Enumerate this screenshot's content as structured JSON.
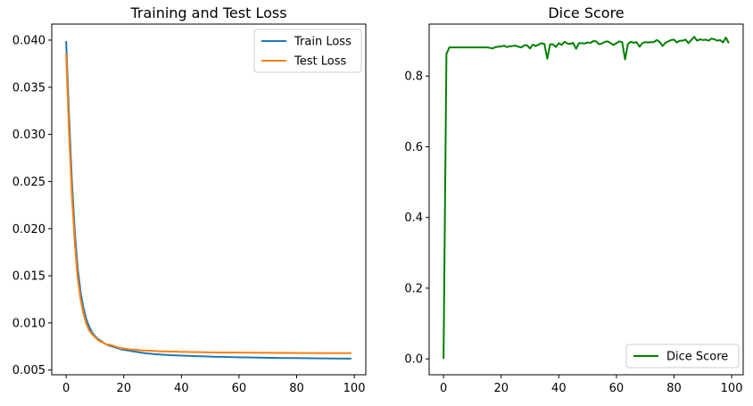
{
  "chart_data": [
    {
      "type": "line",
      "title": "Training and Test Loss",
      "xlabel": "",
      "ylabel": "",
      "xlim": [
        -5,
        104
      ],
      "ylim": [
        0.0045,
        0.0417
      ],
      "xticks": [
        0,
        20,
        40,
        60,
        80,
        100
      ],
      "yticks": [
        0.005,
        0.01,
        0.015,
        0.02,
        0.025,
        0.03,
        0.035,
        0.04
      ],
      "ytick_labels": [
        "0.005",
        "0.010",
        "0.015",
        "0.020",
        "0.025",
        "0.030",
        "0.035",
        "0.040"
      ],
      "legend_position": "top-right",
      "x": [
        0,
        1,
        2,
        3,
        4,
        5,
        6,
        7,
        8,
        9,
        10,
        11,
        12,
        13,
        14,
        15,
        16,
        17,
        18,
        19,
        20,
        21,
        22,
        23,
        24,
        25,
        26,
        27,
        28,
        29,
        30,
        31,
        32,
        33,
        34,
        35,
        36,
        37,
        38,
        39,
        40,
        41,
        42,
        43,
        44,
        45,
        46,
        47,
        48,
        49,
        50,
        51,
        52,
        53,
        54,
        55,
        56,
        57,
        58,
        59,
        60,
        61,
        62,
        63,
        64,
        65,
        66,
        67,
        68,
        69,
        70,
        71,
        72,
        73,
        74,
        75,
        76,
        77,
        78,
        79,
        80,
        81,
        82,
        83,
        84,
        85,
        86,
        87,
        88,
        89,
        90,
        91,
        92,
        93,
        94,
        95,
        96,
        97,
        98,
        99
      ],
      "series": [
        {
          "name": "Train Loss",
          "color": "#1f77b4",
          "values": [
            0.0399,
            0.0319,
            0.025,
            0.0197,
            0.0158,
            0.0133,
            0.0116,
            0.0104,
            0.0096,
            0.009,
            0.0086,
            0.0083,
            0.0081,
            0.0079,
            0.0077,
            0.0076,
            0.0075,
            0.0074,
            0.0073,
            0.0072,
            0.00715,
            0.0071,
            0.00705,
            0.007,
            0.00695,
            0.0069,
            0.00685,
            0.0068,
            0.00677,
            0.00674,
            0.00671,
            0.00668,
            0.00666,
            0.00664,
            0.00662,
            0.0066,
            0.00658,
            0.00657,
            0.00656,
            0.00655,
            0.00653,
            0.00652,
            0.00651,
            0.0065,
            0.00649,
            0.00648,
            0.00647,
            0.00646,
            0.00645,
            0.00644,
            0.00643,
            0.00642,
            0.00641,
            0.0064,
            0.0064,
            0.00639,
            0.00638,
            0.00638,
            0.00637,
            0.00636,
            0.00636,
            0.00635,
            0.00634,
            0.00634,
            0.00633,
            0.00633,
            0.00632,
            0.00632,
            0.00631,
            0.00631,
            0.0063,
            0.0063,
            0.0063,
            0.00629,
            0.00629,
            0.00628,
            0.00628,
            0.00628,
            0.00627,
            0.00627,
            0.00627,
            0.00626,
            0.00626,
            0.00626,
            0.00625,
            0.00625,
            0.00625,
            0.00624,
            0.00624,
            0.00624,
            0.00624,
            0.00623,
            0.00623,
            0.00623,
            0.00622,
            0.00622,
            0.00622,
            0.00622,
            0.00621,
            0.00621
          ]
        },
        {
          "name": "Test Loss",
          "color": "#ff7f0e",
          "values": [
            0.0386,
            0.0302,
            0.0235,
            0.0185,
            0.0148,
            0.0125,
            0.011,
            0.0099,
            0.0092,
            0.0088,
            0.0085,
            0.0082,
            0.008,
            0.0079,
            0.0077,
            0.0077,
            0.0076,
            0.0075,
            0.0074,
            0.0073,
            0.0073,
            0.00725,
            0.0072,
            0.00718,
            0.00716,
            0.00714,
            0.0071,
            0.00708,
            0.00706,
            0.00705,
            0.00704,
            0.00702,
            0.007,
            0.00699,
            0.00698,
            0.00697,
            0.00696,
            0.00695,
            0.00697,
            0.00694,
            0.00693,
            0.00692,
            0.00693,
            0.00691,
            0.0069,
            0.00691,
            0.0069,
            0.00689,
            0.00689,
            0.00688,
            0.00688,
            0.00687,
            0.00687,
            0.00687,
            0.00686,
            0.00686,
            0.00686,
            0.00685,
            0.00685,
            0.00686,
            0.00685,
            0.00684,
            0.00684,
            0.00685,
            0.00684,
            0.00684,
            0.00683,
            0.00683,
            0.00684,
            0.00683,
            0.00683,
            0.00683,
            0.00682,
            0.00682,
            0.00683,
            0.00682,
            0.00682,
            0.00682,
            0.00681,
            0.00682,
            0.00681,
            0.00681,
            0.00681,
            0.00682,
            0.00681,
            0.0068,
            0.0068,
            0.00681,
            0.0068,
            0.0068,
            0.0068,
            0.0068,
            0.00679,
            0.0068,
            0.00679,
            0.00679,
            0.00679,
            0.00679,
            0.00679,
            0.00679
          ]
        }
      ]
    },
    {
      "type": "line",
      "title": "Dice Score",
      "xlabel": "",
      "ylabel": "",
      "xlim": [
        -5,
        104
      ],
      "ylim": [
        -0.045,
        0.947
      ],
      "xticks": [
        0,
        20,
        40,
        60,
        80,
        100
      ],
      "yticks": [
        0.0,
        0.2,
        0.4,
        0.6,
        0.8
      ],
      "ytick_labels": [
        "0.0",
        "0.2",
        "0.4",
        "0.6",
        "0.8"
      ],
      "legend_position": "bottom-right",
      "x": [
        0,
        1,
        2,
        3,
        4,
        5,
        6,
        7,
        8,
        9,
        10,
        11,
        12,
        13,
        14,
        15,
        16,
        17,
        18,
        19,
        20,
        21,
        22,
        23,
        24,
        25,
        26,
        27,
        28,
        29,
        30,
        31,
        32,
        33,
        34,
        35,
        36,
        37,
        38,
        39,
        40,
        41,
        42,
        43,
        44,
        45,
        46,
        47,
        48,
        49,
        50,
        51,
        52,
        53,
        54,
        55,
        56,
        57,
        58,
        59,
        60,
        61,
        62,
        63,
        64,
        65,
        66,
        67,
        68,
        69,
        70,
        71,
        72,
        73,
        74,
        75,
        76,
        77,
        78,
        79,
        80,
        81,
        82,
        83,
        84,
        85,
        86,
        87,
        88,
        89,
        90,
        91,
        92,
        93,
        94,
        95,
        96,
        97,
        98,
        99
      ],
      "series": [
        {
          "name": "Dice Score",
          "color": "#008000",
          "values": [
            0.0,
            0.862,
            0.881,
            0.881,
            0.881,
            0.881,
            0.881,
            0.881,
            0.881,
            0.881,
            0.881,
            0.881,
            0.881,
            0.881,
            0.881,
            0.881,
            0.88,
            0.878,
            0.882,
            0.883,
            0.884,
            0.886,
            0.882,
            0.884,
            0.885,
            0.886,
            0.883,
            0.881,
            0.887,
            0.887,
            0.878,
            0.889,
            0.885,
            0.889,
            0.893,
            0.891,
            0.849,
            0.89,
            0.89,
            0.882,
            0.893,
            0.888,
            0.897,
            0.892,
            0.891,
            0.894,
            0.877,
            0.893,
            0.893,
            0.892,
            0.895,
            0.894,
            0.899,
            0.898,
            0.89,
            0.892,
            0.897,
            0.898,
            0.893,
            0.888,
            0.893,
            0.898,
            0.896,
            0.847,
            0.891,
            0.897,
            0.894,
            0.896,
            0.883,
            0.893,
            0.896,
            0.895,
            0.896,
            0.896,
            0.902,
            0.897,
            0.885,
            0.894,
            0.898,
            0.902,
            0.903,
            0.895,
            0.9,
            0.9,
            0.903,
            0.893,
            0.902,
            0.911,
            0.9,
            0.904,
            0.902,
            0.903,
            0.9,
            0.906,
            0.904,
            0.9,
            0.902,
            0.895,
            0.909,
            0.893
          ]
        }
      ]
    }
  ]
}
